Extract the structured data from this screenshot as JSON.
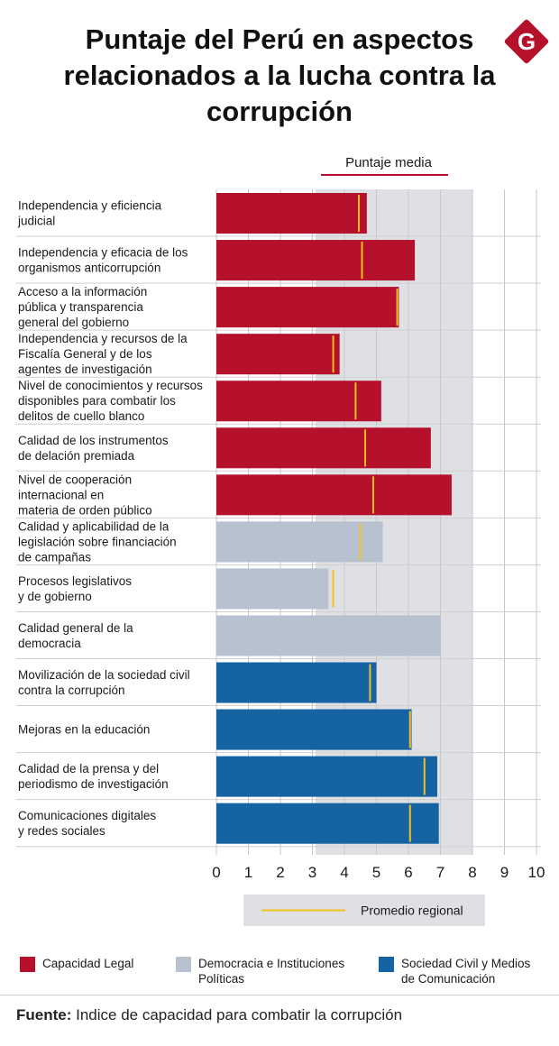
{
  "title": "Puntaje del Perú en aspectos relacionados a la lucha contra la corrupción",
  "logo_letter": "G",
  "colors": {
    "legal": "#b5102c",
    "democracy": "#b8c1cf",
    "society": "#1563a3",
    "average_band": "#dee0e3",
    "regional_marker": "#f2c21b",
    "media_rule": "#b5102c"
  },
  "chart_data": {
    "type": "bar",
    "orientation": "horizontal",
    "xlim": [
      0,
      10
    ],
    "x_ticks": [
      "0",
      "1",
      "2",
      "3",
      "4",
      "5",
      "6",
      "7",
      "8",
      "9",
      "10"
    ],
    "average_band_label": "Puntaje media",
    "average_band_range": [
      3.1,
      8.0
    ],
    "categories": [
      {
        "lines": [
          "Independencia y eficiencia",
          "judicial"
        ],
        "value": 4.7,
        "regional": 4.45,
        "group": "legal"
      },
      {
        "lines": [
          "Independencia y eficacia de los",
          "organismos anticorrupción"
        ],
        "value": 6.2,
        "regional": 4.55,
        "group": "legal"
      },
      {
        "lines": [
          "Acceso a la información",
          "pública y transparencia",
          "general del gobierno"
        ],
        "value": 5.7,
        "regional": 5.65,
        "group": "legal"
      },
      {
        "lines": [
          "Independencia y recursos de la",
          "Fiscalía General y de los",
          "agentes de investigación"
        ],
        "value": 3.85,
        "regional": 3.65,
        "group": "legal"
      },
      {
        "lines": [
          "Nivel de conocimientos y recursos",
          "disponibles para combatir los",
          "delitos de cuello blanco"
        ],
        "value": 5.15,
        "regional": 4.35,
        "group": "legal"
      },
      {
        "lines": [
          "Calidad de los instrumentos",
          "de delación premiada"
        ],
        "value": 6.7,
        "regional": 4.65,
        "group": "legal"
      },
      {
        "lines": [
          "Nivel de cooperación",
          "internacional en",
          "materia de orden público"
        ],
        "value": 7.35,
        "regional": 4.9,
        "group": "legal"
      },
      {
        "lines": [
          "Calidad y aplicabilidad de la",
          "legislación sobre financiación",
          "de campañas"
        ],
        "value": 5.2,
        "regional": 4.5,
        "group": "democracy"
      },
      {
        "lines": [
          "Procesos legislativos",
          "y de gobierno"
        ],
        "value": 3.5,
        "regional": 3.65,
        "group": "democracy"
      },
      {
        "lines": [
          "Calidad general de la",
          "democracia"
        ],
        "value": 7.0,
        "regional": null,
        "group": "democracy"
      },
      {
        "lines": [
          "Movilización de la sociedad civil",
          "contra la corrupción"
        ],
        "value": 5.0,
        "regional": 4.8,
        "group": "society"
      },
      {
        "lines": [
          "Mejoras en la educación"
        ],
        "value": 6.1,
        "regional": 6.05,
        "group": "society"
      },
      {
        "lines": [
          "Calidad de la prensa y del",
          "periodismo de investigación"
        ],
        "value": 6.9,
        "regional": 6.5,
        "group": "society"
      },
      {
        "lines": [
          "Comunicaciones digitales",
          "y redes sociales"
        ],
        "value": 6.95,
        "regional": 6.05,
        "group": "society"
      }
    ],
    "regional_legend_label": "Promedio regional",
    "legend": [
      {
        "group": "legal",
        "lines": [
          "Capacidad Legal"
        ]
      },
      {
        "group": "democracy",
        "lines": [
          "Democracia e Instituciones",
          "Políticas"
        ]
      },
      {
        "group": "society",
        "lines": [
          "Sociedad Civil y Medios",
          "de Comunicación"
        ]
      }
    ]
  },
  "footer": {
    "source_label": "Fuente:",
    "source_text": " Indice de capacidad para combatir la corrupción"
  }
}
